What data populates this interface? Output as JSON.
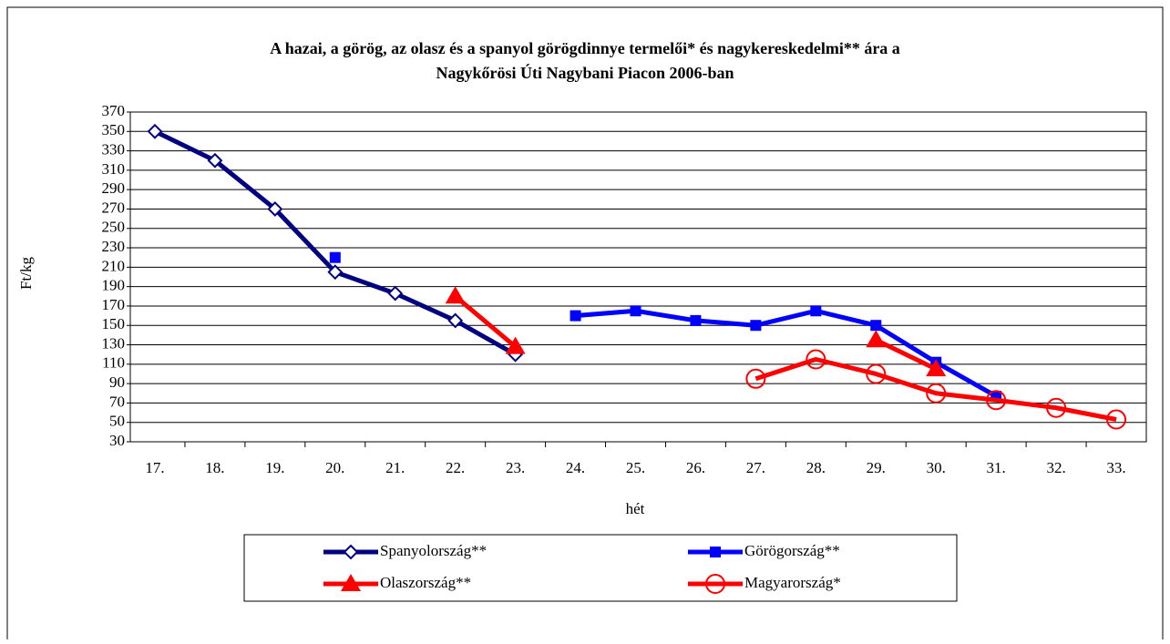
{
  "chart_data": {
    "type": "line",
    "title": [
      "A hazai, a görög, az olasz és a spanyol görögdinnye termelői* és nagykereskedelmi** ára a",
      "Nagykőrösi Úti Nagybani Piacon 2006-ban"
    ],
    "x_label": "hét",
    "y_label": "Ft/kg",
    "categories": [
      "17.",
      "18.",
      "19.",
      "20.",
      "21.",
      "22.",
      "23.",
      "24.",
      "25.",
      "26.",
      "27.",
      "28.",
      "29.",
      "30.",
      "31.",
      "32.",
      "33."
    ],
    "series": [
      {
        "name": "Spanyolország**",
        "color": "#000080",
        "marker": "diamond",
        "values": [
          350,
          320,
          270,
          205,
          183,
          155,
          120,
          null,
          null,
          null,
          null,
          null,
          null,
          null,
          null,
          null,
          null
        ]
      },
      {
        "name": "Görögország**",
        "color": "#0000ff",
        "marker": "square",
        "values": [
          null,
          null,
          null,
          220,
          null,
          null,
          null,
          160,
          165,
          155,
          150,
          165,
          150,
          112,
          77,
          null,
          null
        ]
      },
      {
        "name": "Olaszország**",
        "color": "#ff0000",
        "marker": "triangle",
        "values": [
          null,
          null,
          null,
          null,
          null,
          180,
          128,
          null,
          null,
          null,
          null,
          null,
          135,
          105,
          null,
          null,
          null
        ]
      },
      {
        "name": "Magyarország*",
        "color": "#ff0000",
        "marker": "circle",
        "values": [
          null,
          null,
          null,
          null,
          null,
          null,
          null,
          null,
          null,
          null,
          95,
          115,
          100,
          80,
          73,
          65,
          53
        ]
      }
    ],
    "ylim": [
      30,
      370
    ],
    "yticks": [
      30,
      50,
      70,
      90,
      110,
      130,
      150,
      170,
      190,
      210,
      230,
      250,
      270,
      290,
      310,
      330,
      350,
      370
    ],
    "grid": true
  }
}
